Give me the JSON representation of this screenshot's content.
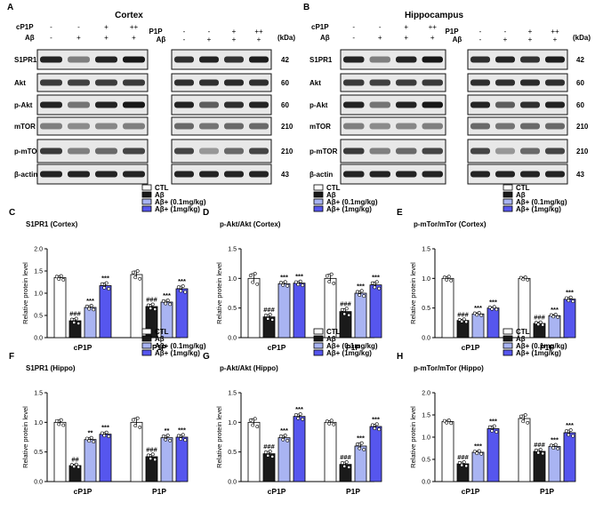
{
  "blot_labels": {
    "kda": "(kDa)",
    "cp1p": "cP1P",
    "p1p": "P1P",
    "abeta": "Aβ",
    "minus": "-",
    "plus": "+",
    "plusplus": "++"
  },
  "blot_panels": [
    {
      "letter": "A",
      "title": "Cortex",
      "rows": [
        {
          "name": "S1PR1",
          "kda": "42"
        },
        {
          "name": "Akt",
          "kda": "60"
        },
        {
          "name": "p-Akt",
          "kda": "60"
        },
        {
          "name": "mTOR",
          "kda": "210"
        },
        {
          "name": "p-mTOR",
          "kda": "210"
        },
        {
          "name": "β-actin",
          "kda": "43"
        }
      ]
    },
    {
      "letter": "B",
      "title": "Hippocampus",
      "rows": [
        {
          "name": "S1PR1",
          "kda": "42"
        },
        {
          "name": "Akt",
          "kda": "60"
        },
        {
          "name": "p-Akt",
          "kda": "60"
        },
        {
          "name": "mTOR",
          "kda": "210"
        },
        {
          "name": "p-mTOR",
          "kda": "210"
        },
        {
          "name": "β-actin",
          "kda": "43"
        }
      ]
    }
  ],
  "legend": {
    "entries": [
      "CTL",
      "Aβ",
      "Aβ+ (0.1mg/kg)",
      "Aβ+ (1mg/kg)"
    ],
    "colors": [
      "#ffffff",
      "#1a1a1a",
      "#a9b4f2",
      "#5656ee"
    ]
  },
  "chart_data": [
    {
      "letter": "C",
      "type": "bar",
      "title": "S1PR1 (Cortex)",
      "ylabel": "Relative protein level",
      "ylim": [
        0,
        2.0
      ],
      "yticks": [
        "0.0",
        "0.5",
        "1.0",
        "1.5",
        "2.0"
      ],
      "categories": [
        "cP1P",
        "P1P"
      ],
      "series": [
        {
          "name": "CTL",
          "values": [
            1.35,
            1.42
          ],
          "errors": [
            0.04,
            0.08
          ]
        },
        {
          "name": "Aβ",
          "values": [
            0.38,
            0.7
          ],
          "errors": [
            0.05,
            0.05
          ]
        },
        {
          "name": "Aβ+ (0.1mg/kg)",
          "values": [
            0.68,
            0.8
          ],
          "errors": [
            0.04,
            0.04
          ]
        },
        {
          "name": "Aβ+ (1mg/kg)",
          "values": [
            1.17,
            1.1
          ],
          "errors": [
            0.06,
            0.06
          ]
        }
      ],
      "annotations": [
        [
          "",
          "###",
          "***",
          "***"
        ],
        [
          "",
          "###",
          "***",
          "***"
        ]
      ]
    },
    {
      "letter": "D",
      "type": "bar",
      "title": "p-Akt/Akt (Cortex)",
      "ylabel": "Relative protein level",
      "ylim": [
        0,
        1.5
      ],
      "yticks": [
        "0.0",
        "0.5",
        "1.0",
        "1.5"
      ],
      "categories": [
        "cP1P",
        "P1P"
      ],
      "series": [
        {
          "name": "CTL",
          "values": [
            1.0,
            1.0
          ],
          "errors": [
            0.08,
            0.07
          ]
        },
        {
          "name": "Aβ",
          "values": [
            0.35,
            0.44
          ],
          "errors": [
            0.04,
            0.05
          ]
        },
        {
          "name": "Aβ+ (0.1mg/kg)",
          "values": [
            0.91,
            0.75
          ],
          "errors": [
            0.03,
            0.04
          ]
        },
        {
          "name": "Aβ+ (1mg/kg)",
          "values": [
            0.92,
            0.89
          ],
          "errors": [
            0.03,
            0.05
          ]
        }
      ],
      "annotations": [
        [
          "",
          "###",
          "***",
          "***"
        ],
        [
          "",
          "###",
          "***",
          "***"
        ]
      ]
    },
    {
      "letter": "E",
      "type": "bar",
      "title": "p-mTor/mTor (Cortex)",
      "ylabel": "Relative protein level",
      "ylim": [
        0,
        1.5
      ],
      "yticks": [
        "0.0",
        "0.5",
        "1.0",
        "1.5"
      ],
      "categories": [
        "cP1P",
        "P1P"
      ],
      "series": [
        {
          "name": "CTL",
          "values": [
            1.0,
            1.0
          ],
          "errors": [
            0.03,
            0.02
          ]
        },
        {
          "name": "Aβ",
          "values": [
            0.29,
            0.24
          ],
          "errors": [
            0.02,
            0.02
          ]
        },
        {
          "name": "Aβ+ (0.1mg/kg)",
          "values": [
            0.4,
            0.37
          ],
          "errors": [
            0.02,
            0.02
          ]
        },
        {
          "name": "Aβ+ (1mg/kg)",
          "values": [
            0.5,
            0.65
          ],
          "errors": [
            0.02,
            0.03
          ]
        }
      ],
      "annotations": [
        [
          "",
          "###",
          "***",
          "***"
        ],
        [
          "",
          "###",
          "***",
          "***"
        ]
      ]
    },
    {
      "letter": "F",
      "type": "bar",
      "title": "S1PR1 (Hippo)",
      "ylabel": "Relative protein level",
      "ylim": [
        0,
        1.5
      ],
      "yticks": [
        "0.0",
        "0.5",
        "1.0",
        "1.5"
      ],
      "categories": [
        "cP1P",
        "P1P"
      ],
      "series": [
        {
          "name": "CTL",
          "values": [
            1.0,
            1.0
          ],
          "errors": [
            0.04,
            0.07
          ]
        },
        {
          "name": "Aβ",
          "values": [
            0.27,
            0.42
          ],
          "errors": [
            0.02,
            0.04
          ]
        },
        {
          "name": "Aβ+ (0.1mg/kg)",
          "values": [
            0.71,
            0.74
          ],
          "errors": [
            0.03,
            0.04
          ]
        },
        {
          "name": "Aβ+ (1mg/kg)",
          "values": [
            0.8,
            0.75
          ],
          "errors": [
            0.03,
            0.04
          ]
        }
      ],
      "annotations": [
        [
          "",
          "##",
          "**",
          "***"
        ],
        [
          "",
          "###",
          "**",
          "***"
        ]
      ]
    },
    {
      "letter": "G",
      "type": "bar",
      "title": "p-Akt/Akt (Hippo)",
      "ylabel": "Relative protein level",
      "ylim": [
        0,
        1.5
      ],
      "yticks": [
        "0.0",
        "0.5",
        "1.0",
        "1.5"
      ],
      "categories": [
        "cP1P",
        "P1P"
      ],
      "series": [
        {
          "name": "CTL",
          "values": [
            1.0,
            1.0
          ],
          "errors": [
            0.06,
            0.03
          ]
        },
        {
          "name": "Aβ",
          "values": [
            0.47,
            0.29
          ],
          "errors": [
            0.04,
            0.04
          ]
        },
        {
          "name": "Aβ+ (0.1mg/kg)",
          "values": [
            0.74,
            0.6
          ],
          "errors": [
            0.04,
            0.05
          ]
        },
        {
          "name": "Aβ+ (1mg/kg)",
          "values": [
            1.1,
            0.93
          ],
          "errors": [
            0.04,
            0.04
          ]
        }
      ],
      "annotations": [
        [
          "",
          "###",
          "***",
          "***"
        ],
        [
          "",
          "###",
          "***",
          "***"
        ]
      ]
    },
    {
      "letter": "H",
      "type": "bar",
      "title": "p-mTor/mTor (Hippo)",
      "ylabel": "Relative protein level",
      "ylim": [
        0,
        2.0
      ],
      "yticks": [
        "0.0",
        "0.5",
        "1.0",
        "1.5",
        "2.0"
      ],
      "categories": [
        "cP1P",
        "P1P"
      ],
      "series": [
        {
          "name": "CTL",
          "values": [
            1.35,
            1.42
          ],
          "errors": [
            0.03,
            0.08
          ]
        },
        {
          "name": "Aβ",
          "values": [
            0.4,
            0.68
          ],
          "errors": [
            0.04,
            0.04
          ]
        },
        {
          "name": "Aβ+ (0.1mg/kg)",
          "values": [
            0.66,
            0.79
          ],
          "errors": [
            0.03,
            0.04
          ]
        },
        {
          "name": "Aβ+ (1mg/kg)",
          "values": [
            1.19,
            1.1
          ],
          "errors": [
            0.06,
            0.06
          ]
        }
      ],
      "annotations": [
        [
          "",
          "###",
          "***",
          "***"
        ],
        [
          "",
          "###",
          "***",
          "***"
        ]
      ]
    }
  ]
}
